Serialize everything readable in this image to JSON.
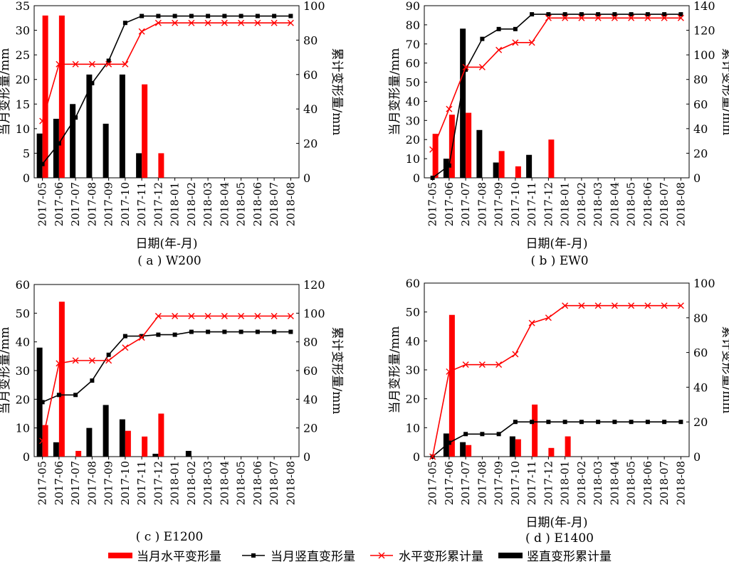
{
  "figure": {
    "legend": [
      {
        "label": "当月水平变形量",
        "kind": "bar",
        "color": "#ff0000"
      },
      {
        "label": "当月竖直变形量",
        "kind": "line-square",
        "color": "#000000"
      },
      {
        "label": "水平变形累计量",
        "kind": "line-x",
        "color": "#ff0000"
      },
      {
        "label": "竖直变形累计量",
        "kind": "bar",
        "color": "#000000"
      }
    ]
  },
  "chart_data": [
    {
      "type": "bar",
      "title": "( a ) W200",
      "xlabel": "日期(年-月)",
      "ylabel": "当月变形量/mm",
      "ylabel_right": "累计变形量/mm",
      "ylim": [
        0,
        35
      ],
      "yticks": [
        0,
        5,
        10,
        15,
        20,
        25,
        30,
        35
      ],
      "y2lim": [
        0,
        100
      ],
      "y2ticks": [
        0,
        20,
        40,
        60,
        80,
        100
      ],
      "categories": [
        "2017-05",
        "2017-06",
        "2017-07",
        "2017-08",
        "2017-09",
        "2017-10",
        "2017-11",
        "2017-12",
        "2018-01",
        "2018-02",
        "2018-03",
        "2018-04",
        "2018-05",
        "2018-06",
        "2018-07",
        "2018-08"
      ],
      "series": [
        {
          "name": "当月水平变形量",
          "kind": "bar",
          "axis": "left",
          "color": "#ff0000",
          "values": [
            33,
            33,
            0,
            0,
            0,
            0,
            19,
            5,
            0,
            0,
            0,
            0,
            0,
            0,
            0,
            0
          ]
        },
        {
          "name": "竖直变形累计量",
          "kind": "bar",
          "axis": "left",
          "color": "#000000",
          "values": [
            9,
            12,
            15,
            21,
            11,
            21,
            5,
            0,
            0,
            0,
            0,
            0,
            0,
            0,
            0,
            0
          ]
        },
        {
          "name": "当月竖直变形量",
          "kind": "line-square",
          "axis": "right",
          "color": "#000000",
          "values": [
            8,
            20,
            35,
            55,
            68,
            90,
            94,
            94,
            94,
            94,
            94,
            94,
            94,
            94,
            94,
            94
          ]
        },
        {
          "name": "水平变形累计量",
          "kind": "line-x",
          "axis": "right",
          "color": "#ff0000",
          "values": [
            33,
            66,
            66,
            66,
            66,
            66,
            85,
            90,
            90,
            90,
            90,
            90,
            90,
            90,
            90,
            90
          ]
        }
      ]
    },
    {
      "type": "bar",
      "title": "( b ) EW0",
      "xlabel": "日期(年-月)",
      "ylabel": "当月变形量/mm",
      "ylabel_right": "累计变形量/mm",
      "ylim": [
        0,
        90
      ],
      "yticks": [
        0,
        10,
        20,
        30,
        40,
        50,
        60,
        70,
        80,
        90
      ],
      "y2lim": [
        0,
        140
      ],
      "y2ticks": [
        0,
        20,
        40,
        60,
        80,
        100,
        120,
        140
      ],
      "categories": [
        "2017-05",
        "2017-06",
        "2017-07",
        "2017-08",
        "2017-09",
        "2017-10",
        "2017-11",
        "2017-12",
        "2018-01",
        "2018-02",
        "2018-03",
        "2018-04",
        "2018-05",
        "2018-06",
        "2018-07",
        "2018-08"
      ],
      "series": [
        {
          "name": "当月水平变形量",
          "kind": "bar",
          "axis": "left",
          "color": "#ff0000",
          "values": [
            23,
            33,
            34,
            0,
            14,
            6,
            0,
            20,
            0,
            0,
            0,
            0,
            0,
            0,
            0,
            0
          ]
        },
        {
          "name": "竖直变形累计量",
          "kind": "bar",
          "axis": "left",
          "color": "#000000",
          "values": [
            0,
            10,
            78,
            25,
            8,
            0,
            12,
            0,
            0,
            0,
            0,
            0,
            0,
            0,
            0,
            0
          ]
        },
        {
          "name": "当月竖直变形量",
          "kind": "line-square",
          "axis": "right",
          "color": "#000000",
          "values": [
            0,
            10,
            88,
            113,
            121,
            121,
            133,
            133,
            133,
            133,
            133,
            133,
            133,
            133,
            133,
            133
          ]
        },
        {
          "name": "水平变形累计量",
          "kind": "line-x",
          "axis": "right",
          "color": "#ff0000",
          "values": [
            23,
            56,
            90,
            90,
            104,
            110,
            110,
            130,
            130,
            130,
            130,
            130,
            130,
            130,
            130,
            130
          ]
        }
      ]
    },
    {
      "type": "bar",
      "title": "( c ) E1200",
      "xlabel": "",
      "ylabel": "当月变形量/mm",
      "ylabel_right": "累计变形量/mm",
      "ylim": [
        0,
        60
      ],
      "yticks": [
        0,
        10,
        20,
        30,
        40,
        50,
        60
      ],
      "y2lim": [
        0,
        120
      ],
      "y2ticks": [
        0,
        20,
        40,
        60,
        80,
        100,
        120
      ],
      "categories": [
        "2017-05",
        "2017-06",
        "2017-07",
        "2017-08",
        "2017-09",
        "2017-10",
        "2017-11",
        "2017-12",
        "2018-01",
        "2018-02",
        "2018-03",
        "2018-04",
        "2018-05",
        "2018-06",
        "2018-07",
        "2018-08"
      ],
      "series": [
        {
          "name": "当月水平变形量",
          "kind": "bar",
          "axis": "left",
          "color": "#ff0000",
          "values": [
            11,
            54,
            2,
            0,
            0,
            9,
            7,
            15,
            0,
            0,
            0,
            0,
            0,
            0,
            0,
            0
          ]
        },
        {
          "name": "竖直变形累计量",
          "kind": "bar",
          "axis": "left",
          "color": "#000000",
          "values": [
            38,
            5,
            0,
            10,
            18,
            13,
            0,
            1,
            0,
            2,
            0,
            0,
            0,
            0,
            0,
            0
          ]
        },
        {
          "name": "当月竖直变形量",
          "kind": "line-square",
          "axis": "right",
          "color": "#000000",
          "values": [
            38,
            43,
            43,
            53,
            71,
            84,
            84,
            85,
            85,
            87,
            87,
            87,
            87,
            87,
            87,
            87
          ]
        },
        {
          "name": "水平变形累计量",
          "kind": "line-x",
          "axis": "right",
          "color": "#ff0000",
          "values": [
            11,
            65,
            67,
            67,
            67,
            76,
            83,
            98,
            98,
            98,
            98,
            98,
            98,
            98,
            98,
            98
          ]
        }
      ]
    },
    {
      "type": "bar",
      "title": "( d ) E1400",
      "xlabel": "日期(年-月)",
      "ylabel": "当月变形量/mm",
      "ylabel_right": "累计变形量/mm",
      "ylim": [
        0,
        60
      ],
      "yticks": [
        0,
        10,
        20,
        30,
        40,
        50,
        60
      ],
      "y2lim": [
        0,
        100
      ],
      "y2ticks": [
        0,
        20,
        40,
        60,
        80,
        100
      ],
      "categories": [
        "2017-05",
        "2017-06",
        "2017-07",
        "2017-08",
        "2017-09",
        "2017-10",
        "2017-11",
        "2017-12",
        "2018-01",
        "2018-02",
        "2018-03",
        "2018-04",
        "2018-05",
        "2018-06",
        "2018-07",
        "2018-08"
      ],
      "series": [
        {
          "name": "当月水平变形量",
          "kind": "bar",
          "axis": "left",
          "color": "#ff0000",
          "values": [
            0,
            49,
            4,
            0,
            0,
            6,
            18,
            3,
            7,
            0,
            0,
            0,
            0,
            0,
            0,
            0
          ]
        },
        {
          "name": "竖直变形累计量",
          "kind": "bar",
          "axis": "left",
          "color": "#000000",
          "values": [
            0,
            8,
            5,
            0,
            0,
            7,
            0,
            0,
            0,
            0,
            0,
            0,
            0,
            0,
            0,
            0
          ]
        },
        {
          "name": "当月竖直变形量",
          "kind": "line-square",
          "axis": "right",
          "color": "#000000",
          "values": [
            0,
            8,
            13,
            13,
            13,
            20,
            20,
            20,
            20,
            20,
            20,
            20,
            20,
            20,
            20,
            20
          ]
        },
        {
          "name": "水平变形累计量",
          "kind": "line-x",
          "axis": "right",
          "color": "#ff0000",
          "values": [
            0,
            49,
            53,
            53,
            53,
            59,
            77,
            80,
            87,
            87,
            87,
            87,
            87,
            87,
            87,
            87
          ]
        }
      ]
    }
  ]
}
